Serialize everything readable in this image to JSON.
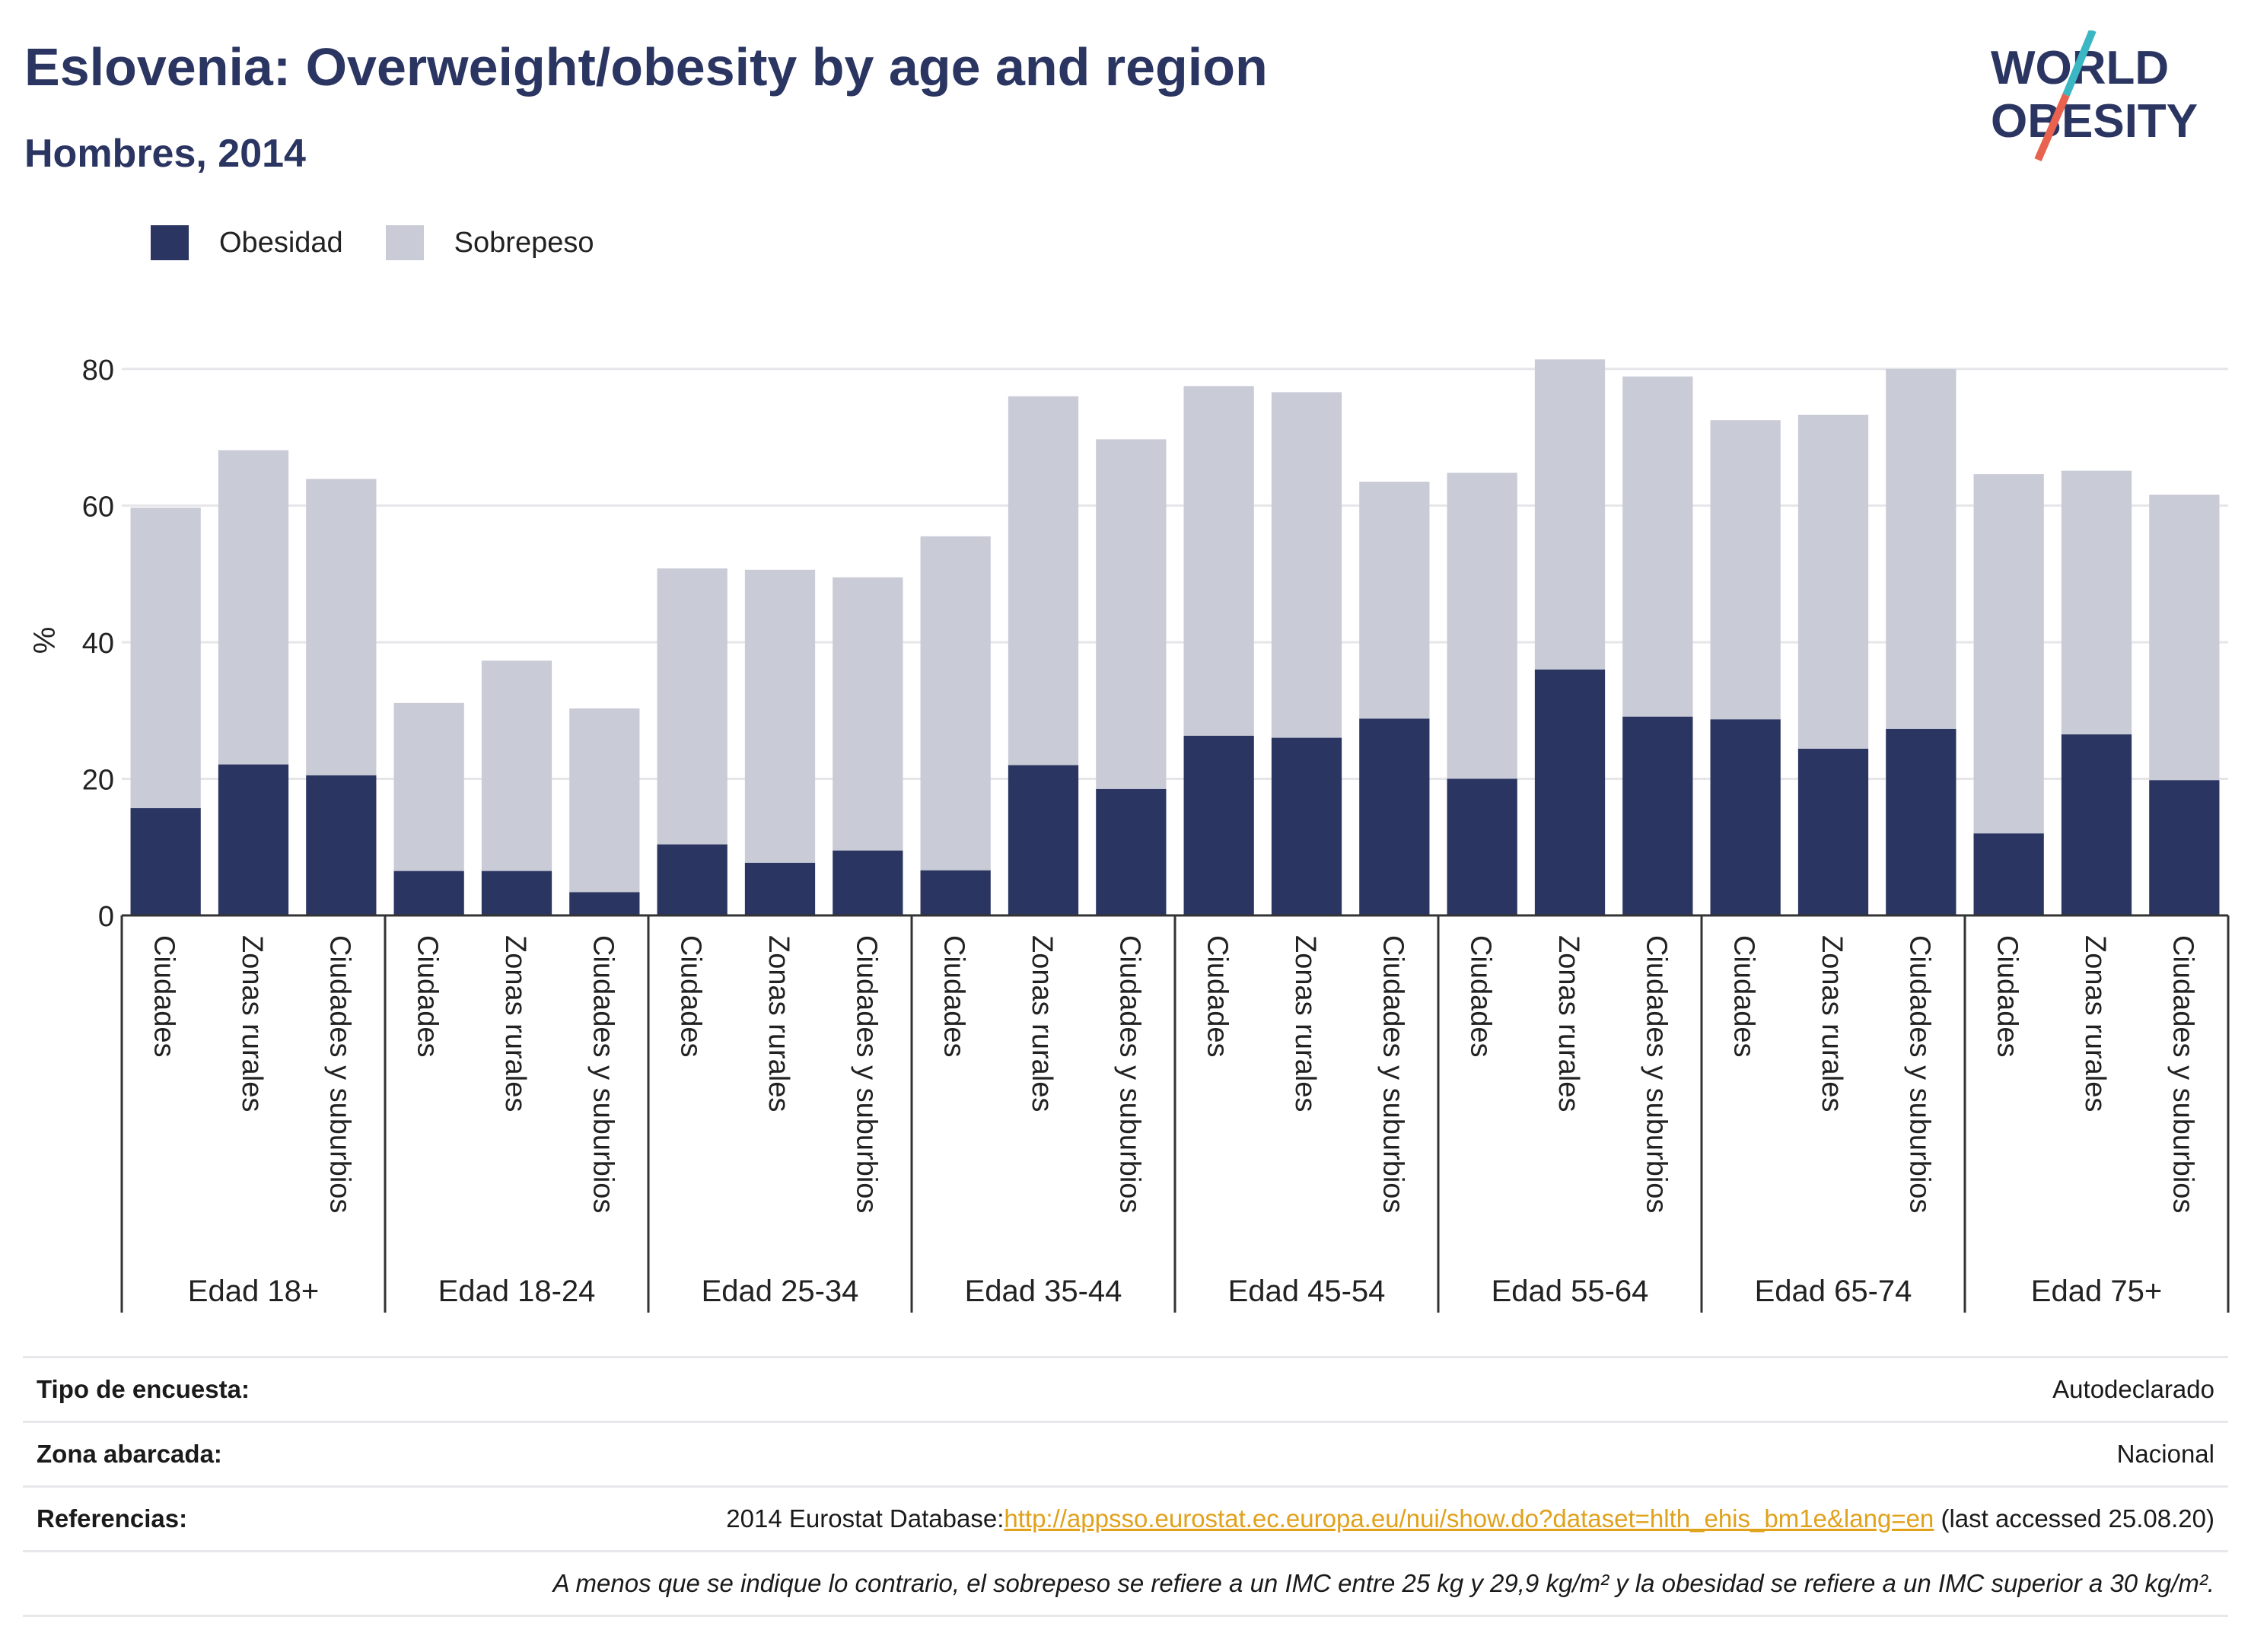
{
  "header": {
    "title": "Eslovenia: Overweight/obesity by age and region",
    "subtitle": "Hombres, 2014"
  },
  "logo": {
    "line1": "WORLD",
    "line2": "OBESITY",
    "colors": {
      "text": "#2b3561",
      "slash_teal": "#3bb7c4",
      "slash_red": "#e8624f"
    }
  },
  "chart_data": {
    "type": "bar",
    "stacked": true,
    "ylabel": "%",
    "ylim": [
      0,
      85
    ],
    "yticks": [
      0,
      20,
      40,
      60,
      80
    ],
    "grid": true,
    "legend_placement": "top-left",
    "groups": [
      "Edad 18+",
      "Edad 18-24",
      "Edad 25-34",
      "Edad 35-44",
      "Edad 45-54",
      "Edad 55-64",
      "Edad 65-74",
      "Edad 75+"
    ],
    "subcategories": [
      "Ciudades",
      "Zonas rurales",
      "Ciudades y suburbios"
    ],
    "series": [
      {
        "name": "Obesidad",
        "color": "#2b3561",
        "values": [
          15.7,
          22.1,
          20.5,
          6.5,
          6.5,
          3.4,
          10.4,
          7.7,
          9.5,
          6.6,
          22.0,
          18.5,
          26.3,
          26.0,
          28.8,
          20.0,
          36.0,
          29.1,
          28.7,
          24.4,
          27.3,
          12.0,
          26.5,
          19.8
        ]
      },
      {
        "name": "Sobrepeso",
        "color": "#c9cbd6",
        "values": [
          44.0,
          46.0,
          43.4,
          24.6,
          30.8,
          26.9,
          40.4,
          42.9,
          40.0,
          48.9,
          54.0,
          51.2,
          51.2,
          50.6,
          34.7,
          44.8,
          45.4,
          49.8,
          43.8,
          48.9,
          52.7,
          52.6,
          38.6,
          41.8
        ]
      }
    ]
  },
  "info": {
    "rows": [
      {
        "label": "Tipo de encuesta:",
        "value": "Autodeclarado"
      },
      {
        "label": "Zona abarcada:",
        "value": "Nacional"
      },
      {
        "label": "Referencias:",
        "prefix": "2014 Eurostat Database:",
        "link": "http://appsso.eurostat.ec.europa.eu/nui/show.do?dataset=hlth_ehis_bm1e&lang=en",
        "suffix": " (last accessed 25.08.20)"
      }
    ],
    "note": "A menos que se indique lo contrario, el sobrepeso se refiere a un IMC entre 25 kg y 29,9 kg/m² y la obesidad se refiere a un IMC superior a 30 kg/m²."
  }
}
